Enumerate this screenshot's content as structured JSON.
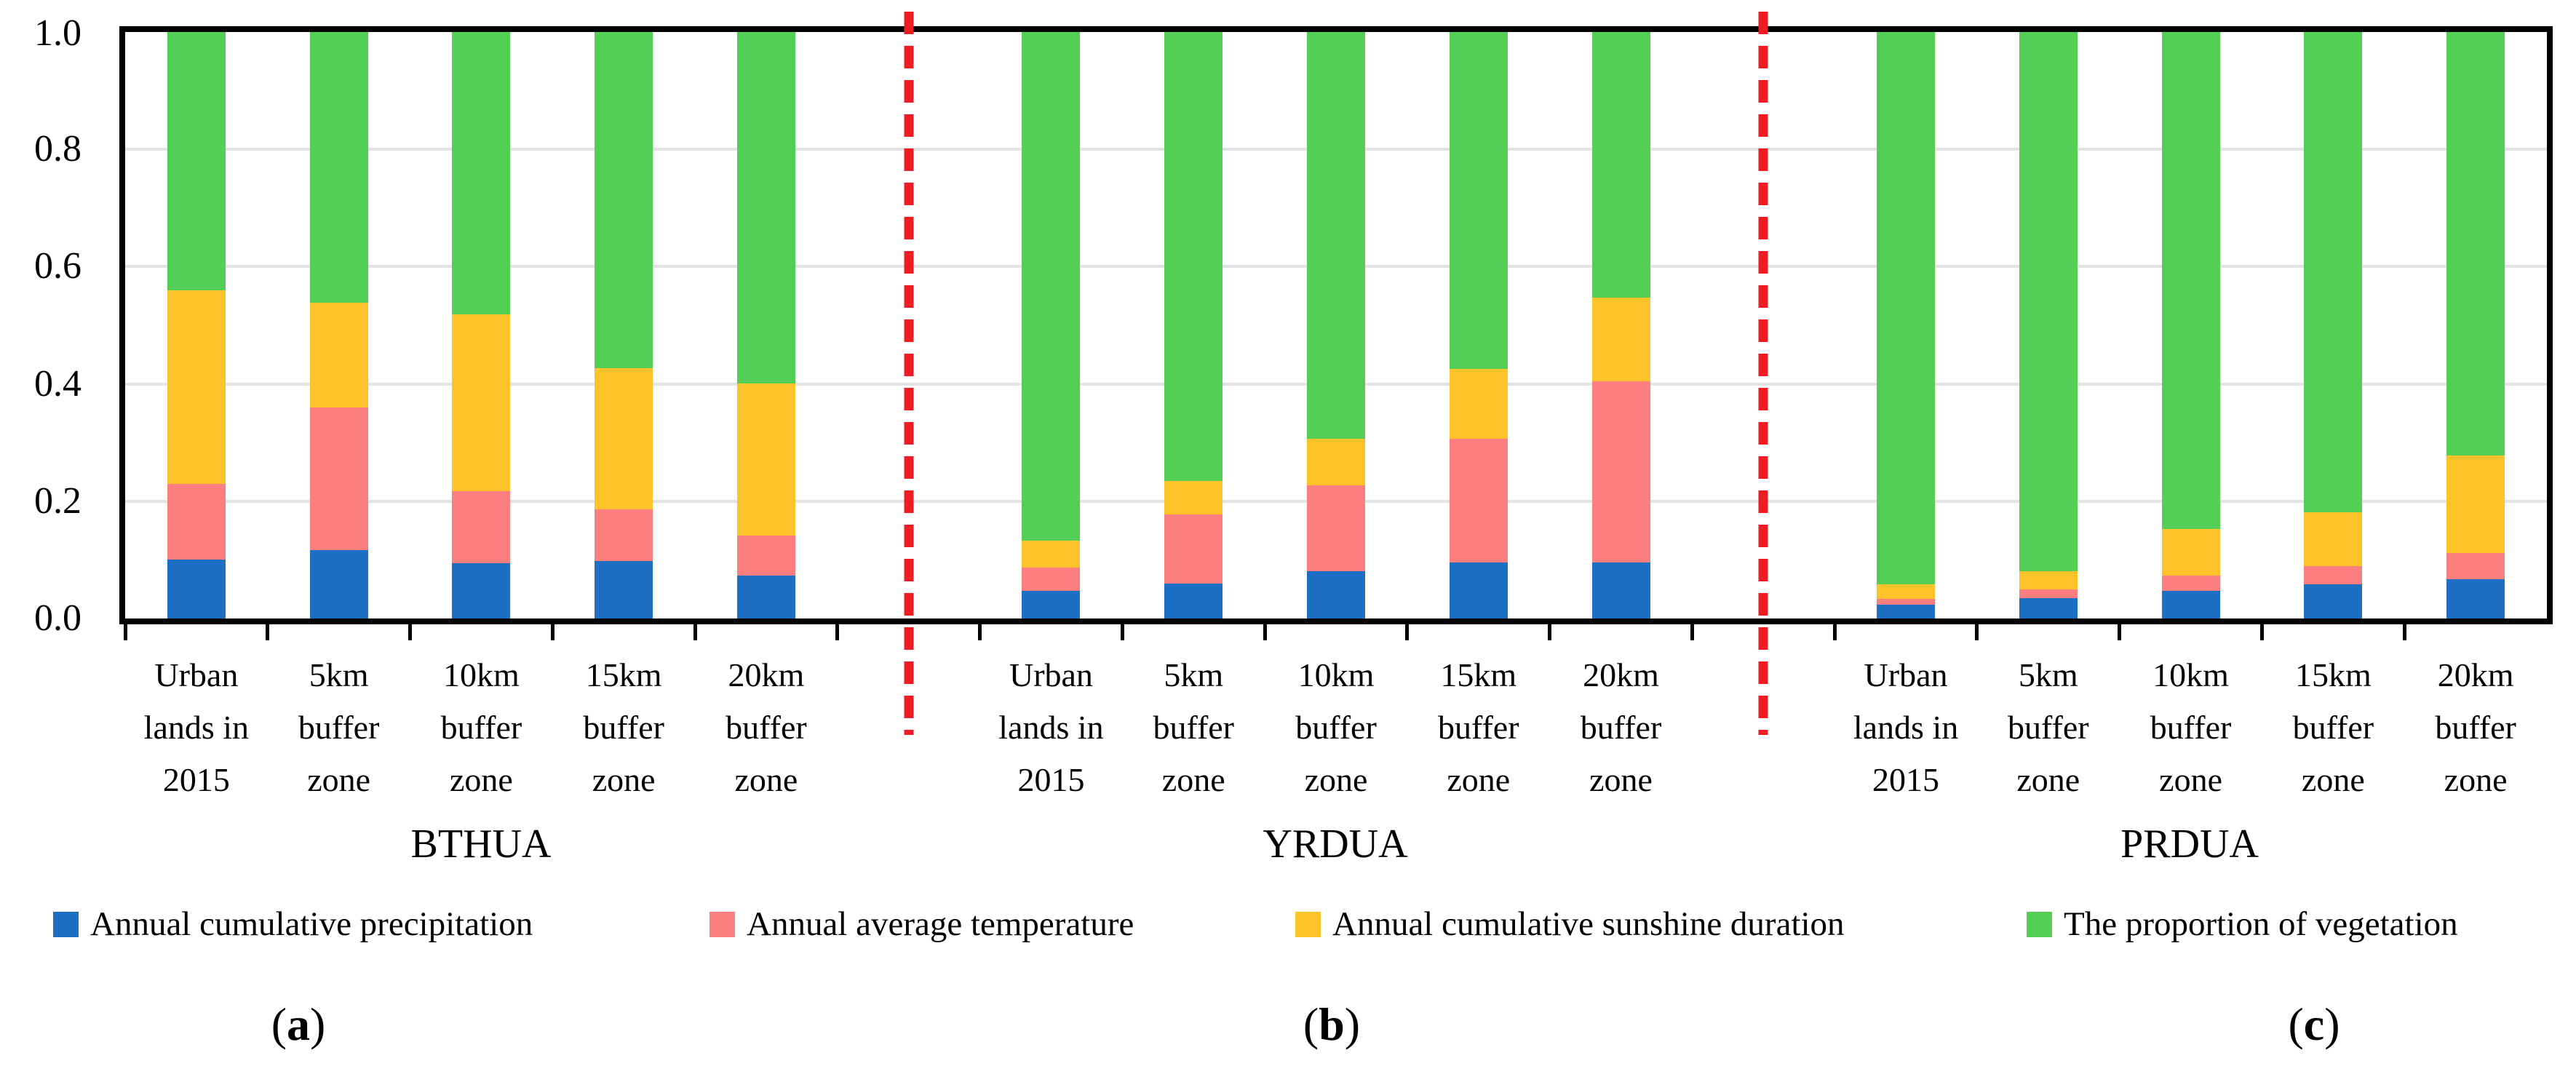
{
  "figure": {
    "background": "#ffffff",
    "axis_color": "#000000",
    "gridline_color": "#e3e3e3",
    "divider_color": "#ee1d23"
  },
  "y_axis": {
    "tick_labels": [
      "1.0",
      "0.8",
      "0.6",
      "0.4",
      "0.2",
      "0.0"
    ]
  },
  "panel_paren": {
    "open": "(",
    "close": ")"
  },
  "chart_data": {
    "type": "bar",
    "stacked": true,
    "normalized": true,
    "title": "",
    "xlabel": "",
    "ylabel": "",
    "ylim": [
      0,
      1
    ],
    "ytick_step": 0.2,
    "grid": true,
    "legend_position": "bottom",
    "series_order": [
      "precipitation",
      "temperature",
      "sunshine",
      "vegetation"
    ],
    "series_meta": {
      "precipitation": {
        "label": "Annual cumulative precipitation",
        "color": "#1d6fc3"
      },
      "temperature": {
        "label": "Annual average temperature",
        "color": "#fd7e7e"
      },
      "sunshine": {
        "label": "Annual cumulative sunshine duration",
        "color": "#fdc32b"
      },
      "vegetation": {
        "label": "The proportion of vegetation",
        "color": "#54cf55"
      }
    },
    "groups": [
      {
        "name": "BTHUA",
        "panel_letter": "a",
        "categories": [
          [
            "Urban",
            "lands in",
            "2015"
          ],
          [
            "5km",
            "buffer",
            "zone"
          ],
          [
            "10km",
            "buffer",
            "zone"
          ],
          [
            "15km",
            "buffer",
            "zone"
          ],
          [
            "20km",
            "buffer",
            "zone"
          ]
        ],
        "values": {
          "precipitation": [
            0.1,
            0.117,
            0.094,
            0.098,
            0.073
          ],
          "temperature": [
            0.13,
            0.243,
            0.123,
            0.088,
            0.068
          ],
          "sunshine": [
            0.33,
            0.179,
            0.302,
            0.241,
            0.26
          ],
          "vegetation": [
            0.44,
            0.461,
            0.481,
            0.573,
            0.599
          ]
        }
      },
      {
        "name": "YRDUA",
        "panel_letter": "b",
        "categories": [
          [
            "Urban",
            "lands in",
            "2015"
          ],
          [
            "5km",
            "buffer",
            "zone"
          ],
          [
            "10km",
            "buffer",
            "zone"
          ],
          [
            "15km",
            "buffer",
            "zone"
          ],
          [
            "20km",
            "buffer",
            "zone"
          ]
        ],
        "values": {
          "precipitation": [
            0.047,
            0.06,
            0.081,
            0.096,
            0.096
          ],
          "temperature": [
            0.04,
            0.118,
            0.146,
            0.211,
            0.308
          ],
          "sunshine": [
            0.046,
            0.056,
            0.08,
            0.118,
            0.143
          ],
          "vegetation": [
            0.867,
            0.766,
            0.693,
            0.575,
            0.453
          ]
        }
      },
      {
        "name": "PRDUA",
        "panel_letter": "c",
        "categories": [
          [
            "Urban",
            "lands in",
            "2015"
          ],
          [
            "5km",
            "buffer",
            "zone"
          ],
          [
            "10km",
            "buffer",
            "zone"
          ],
          [
            "15km",
            "buffer",
            "zone"
          ],
          [
            "20km",
            "buffer",
            "zone"
          ]
        ],
        "values": {
          "precipitation": [
            0.023,
            0.035,
            0.047,
            0.058,
            0.067
          ],
          "temperature": [
            0.011,
            0.015,
            0.026,
            0.031,
            0.045
          ],
          "sunshine": [
            0.024,
            0.031,
            0.08,
            0.092,
            0.166
          ],
          "vegetation": [
            0.942,
            0.919,
            0.847,
            0.819,
            0.722
          ]
        }
      }
    ]
  }
}
